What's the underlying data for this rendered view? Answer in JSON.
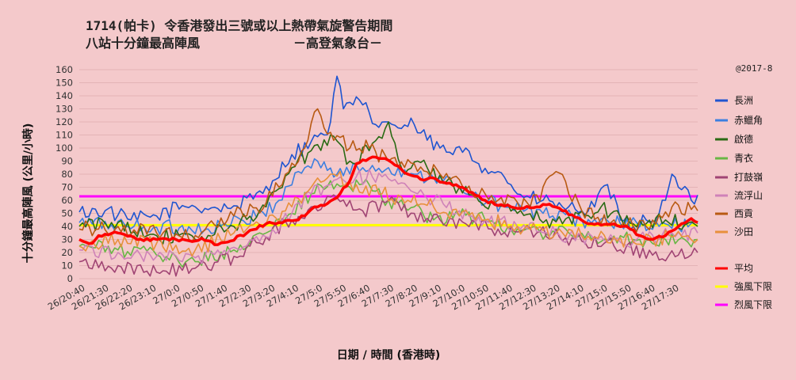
{
  "chart_data": {
    "type": "line",
    "title": "1714(帕卡) 令香港發出三號或以上熱帶氣旋警告期間",
    "subtitle": "八站十分鐘最高陣風",
    "source": "－高登氣象台－",
    "credit": "@2017-8",
    "xlabel": "日期 / 時間 (香港時)",
    "ylabel": "十分鐘最高陣風 (公里/小時)",
    "ylim": [
      0,
      160
    ],
    "yticks": [
      0,
      10,
      20,
      30,
      40,
      50,
      60,
      70,
      80,
      90,
      100,
      110,
      120,
      130,
      140,
      150,
      160
    ],
    "x_tick_labels": [
      "26/20:40",
      "26/21:30",
      "26/22:20",
      "26/23:10",
      "27/0:0",
      "27/0:50",
      "27/1:40",
      "27/2:30",
      "27/3:20",
      "27/4:10",
      "27/5:0",
      "27/5:50",
      "27/6:40",
      "27/7:30",
      "27/8:20",
      "27/9:10",
      "27/10:0",
      "27/10:50",
      "27/11:40",
      "27/12:30",
      "27/13:20",
      "27/14:10",
      "27/15:0",
      "27/15:50",
      "27/16:40",
      "27/17:30"
    ],
    "x_interval_minutes": 10,
    "grid": true,
    "legend_position": "right",
    "thresholds": [
      {
        "name": "強風下限",
        "value": 41,
        "color": "#ffff00"
      },
      {
        "name": "烈風下限",
        "value": 63,
        "color": "#ff00ff"
      }
    ],
    "series": [
      {
        "name": "長洲",
        "color": "#1f55d0",
        "key": [
          [
            0,
            51
          ],
          [
            8,
            52
          ],
          [
            16,
            45
          ],
          [
            24,
            48
          ],
          [
            32,
            56
          ],
          [
            36,
            55
          ],
          [
            46,
            54
          ],
          [
            54,
            61
          ],
          [
            60,
            75
          ],
          [
            66,
            95
          ],
          [
            72,
            105
          ],
          [
            76,
            110
          ],
          [
            78,
            120
          ],
          [
            80,
            155
          ],
          [
            82,
            130
          ],
          [
            84,
            135
          ],
          [
            88,
            133
          ],
          [
            92,
            118
          ],
          [
            96,
            120
          ],
          [
            100,
            115
          ],
          [
            104,
            118
          ],
          [
            108,
            106
          ],
          [
            112,
            100
          ],
          [
            116,
            95
          ],
          [
            120,
            100
          ],
          [
            124,
            88
          ],
          [
            130,
            82
          ],
          [
            134,
            72
          ],
          [
            138,
            62
          ],
          [
            144,
            60
          ],
          [
            150,
            55
          ],
          [
            156,
            52
          ],
          [
            160,
            55
          ],
          [
            164,
            72
          ],
          [
            168,
            45
          ],
          [
            172,
            40
          ],
          [
            176,
            45
          ],
          [
            180,
            50
          ],
          [
            182,
            60
          ],
          [
            184,
            80
          ],
          [
            186,
            70
          ],
          [
            190,
            60
          ],
          [
            192,
            64
          ]
        ]
      },
      {
        "name": "赤鱲角",
        "color": "#3c7fe0",
        "key": [
          [
            0,
            43
          ],
          [
            20,
            40
          ],
          [
            40,
            38
          ],
          [
            55,
            47
          ],
          [
            62,
            60
          ],
          [
            68,
            82
          ],
          [
            74,
            90
          ],
          [
            80,
            80
          ],
          [
            88,
            85
          ],
          [
            96,
            85
          ],
          [
            104,
            80
          ],
          [
            112,
            78
          ],
          [
            120,
            65
          ],
          [
            132,
            55
          ],
          [
            144,
            50
          ],
          [
            156,
            45
          ],
          [
            168,
            42
          ],
          [
            180,
            40
          ],
          [
            192,
            42
          ]
        ]
      },
      {
        "name": "啟德",
        "color": "#2a6a14",
        "key": [
          [
            0,
            40
          ],
          [
            12,
            43
          ],
          [
            24,
            33
          ],
          [
            36,
            30
          ],
          [
            48,
            40
          ],
          [
            58,
            55
          ],
          [
            66,
            85
          ],
          [
            72,
            98
          ],
          [
            78,
            110
          ],
          [
            84,
            90
          ],
          [
            90,
            98
          ],
          [
            96,
            120
          ],
          [
            100,
            85
          ],
          [
            108,
            85
          ],
          [
            116,
            72
          ],
          [
            126,
            55
          ],
          [
            136,
            50
          ],
          [
            150,
            42
          ],
          [
            162,
            55
          ],
          [
            172,
            42
          ],
          [
            182,
            45
          ],
          [
            192,
            40
          ]
        ]
      },
      {
        "name": "青衣",
        "color": "#68b644",
        "key": [
          [
            0,
            25
          ],
          [
            12,
            22
          ],
          [
            24,
            18
          ],
          [
            36,
            13
          ],
          [
            48,
            22
          ],
          [
            58,
            35
          ],
          [
            66,
            50
          ],
          [
            72,
            65
          ],
          [
            78,
            75
          ],
          [
            84,
            70
          ],
          [
            90,
            72
          ],
          [
            96,
            60
          ],
          [
            104,
            55
          ],
          [
            110,
            45
          ],
          [
            118,
            48
          ],
          [
            126,
            45
          ],
          [
            136,
            38
          ],
          [
            148,
            35
          ],
          [
            160,
            32
          ],
          [
            172,
            30
          ],
          [
            182,
            30
          ],
          [
            192,
            30
          ]
        ]
      },
      {
        "name": "打鼓嶺",
        "color": "#a04474",
        "key": [
          [
            0,
            13
          ],
          [
            12,
            10
          ],
          [
            24,
            5
          ],
          [
            36,
            8
          ],
          [
            48,
            17
          ],
          [
            58,
            32
          ],
          [
            66,
            45
          ],
          [
            72,
            55
          ],
          [
            80,
            62
          ],
          [
            88,
            52
          ],
          [
            96,
            60
          ],
          [
            104,
            50
          ],
          [
            112,
            45
          ],
          [
            120,
            42
          ],
          [
            130,
            38
          ],
          [
            142,
            35
          ],
          [
            154,
            30
          ],
          [
            166,
            25
          ],
          [
            178,
            18
          ],
          [
            186,
            18
          ],
          [
            192,
            20
          ]
        ]
      },
      {
        "name": "流浮山",
        "color": "#cf82b8",
        "key": [
          [
            0,
            22
          ],
          [
            12,
            20
          ],
          [
            24,
            17
          ],
          [
            36,
            16
          ],
          [
            48,
            24
          ],
          [
            58,
            32
          ],
          [
            66,
            50
          ],
          [
            72,
            65
          ],
          [
            78,
            72
          ],
          [
            86,
            78
          ],
          [
            94,
            78
          ],
          [
            102,
            70
          ],
          [
            110,
            60
          ],
          [
            118,
            52
          ],
          [
            126,
            45
          ],
          [
            136,
            40
          ],
          [
            148,
            35
          ],
          [
            160,
            30
          ],
          [
            172,
            28
          ],
          [
            184,
            35
          ],
          [
            192,
            35
          ]
        ]
      },
      {
        "name": "西貢",
        "color": "#b85a12",
        "key": [
          [
            0,
            38
          ],
          [
            12,
            40
          ],
          [
            24,
            35
          ],
          [
            36,
            33
          ],
          [
            48,
            48
          ],
          [
            58,
            58
          ],
          [
            64,
            80
          ],
          [
            70,
            100
          ],
          [
            74,
            130
          ],
          [
            78,
            112
          ],
          [
            84,
            100
          ],
          [
            90,
            100
          ],
          [
            96,
            90
          ],
          [
            104,
            88
          ],
          [
            112,
            80
          ],
          [
            120,
            68
          ],
          [
            130,
            60
          ],
          [
            140,
            55
          ],
          [
            148,
            82
          ],
          [
            156,
            52
          ],
          [
            166,
            45
          ],
          [
            176,
            40
          ],
          [
            184,
            55
          ],
          [
            192,
            52
          ]
        ]
      },
      {
        "name": "沙田",
        "color": "#e8903c",
        "key": [
          [
            0,
            25
          ],
          [
            12,
            30
          ],
          [
            24,
            27
          ],
          [
            36,
            22
          ],
          [
            48,
            35
          ],
          [
            58,
            42
          ],
          [
            66,
            55
          ],
          [
            72,
            70
          ],
          [
            78,
            80
          ],
          [
            86,
            72
          ],
          [
            94,
            65
          ],
          [
            102,
            60
          ],
          [
            110,
            55
          ],
          [
            118,
            48
          ],
          [
            126,
            45
          ],
          [
            136,
            40
          ],
          [
            148,
            35
          ],
          [
            160,
            32
          ],
          [
            172,
            28
          ],
          [
            184,
            32
          ],
          [
            192,
            30
          ]
        ]
      },
      {
        "name": "平均",
        "color": "#ff0000",
        "key": [
          [
            0,
            30
          ],
          [
            4,
            27
          ],
          [
            6,
            33
          ],
          [
            12,
            35
          ],
          [
            18,
            30
          ],
          [
            24,
            30
          ],
          [
            30,
            30
          ],
          [
            34,
            29
          ],
          [
            38,
            31
          ],
          [
            42,
            26
          ],
          [
            46,
            28
          ],
          [
            52,
            35
          ],
          [
            58,
            42
          ],
          [
            62,
            43
          ],
          [
            68,
            45
          ],
          [
            72,
            53
          ],
          [
            76,
            56
          ],
          [
            80,
            62
          ],
          [
            84,
            75
          ],
          [
            86,
            88
          ],
          [
            90,
            92
          ],
          [
            94,
            92
          ],
          [
            98,
            87
          ],
          [
            102,
            80
          ],
          [
            106,
            76
          ],
          [
            110,
            77
          ],
          [
            114,
            73
          ],
          [
            118,
            70
          ],
          [
            122,
            66
          ],
          [
            126,
            60
          ],
          [
            130,
            56
          ],
          [
            134,
            55
          ],
          [
            138,
            54
          ],
          [
            142,
            55
          ],
          [
            146,
            57
          ],
          [
            150,
            52
          ],
          [
            154,
            47
          ],
          [
            158,
            42
          ],
          [
            162,
            41
          ],
          [
            166,
            42
          ],
          [
            170,
            40
          ],
          [
            174,
            33
          ],
          [
            178,
            30
          ],
          [
            182,
            33
          ],
          [
            186,
            40
          ],
          [
            190,
            46
          ],
          [
            192,
            43
          ]
        ]
      }
    ],
    "legend": [
      {
        "name": "長洲",
        "color": "#1f55d0"
      },
      {
        "name": "赤鱲角",
        "color": "#3c7fe0"
      },
      {
        "name": "啟德",
        "color": "#2a6a14"
      },
      {
        "name": "青衣",
        "color": "#68b644"
      },
      {
        "name": "打鼓嶺",
        "color": "#a04474"
      },
      {
        "name": "流浮山",
        "color": "#cf82b8"
      },
      {
        "name": "西貢",
        "color": "#b85a12"
      },
      {
        "name": "沙田",
        "color": "#e8903c"
      },
      {
        "name": "平均",
        "color": "#ff0000"
      },
      {
        "name": "強風下限",
        "color": "#ffff00"
      },
      {
        "name": "烈風下限",
        "color": "#ff00ff"
      }
    ]
  }
}
